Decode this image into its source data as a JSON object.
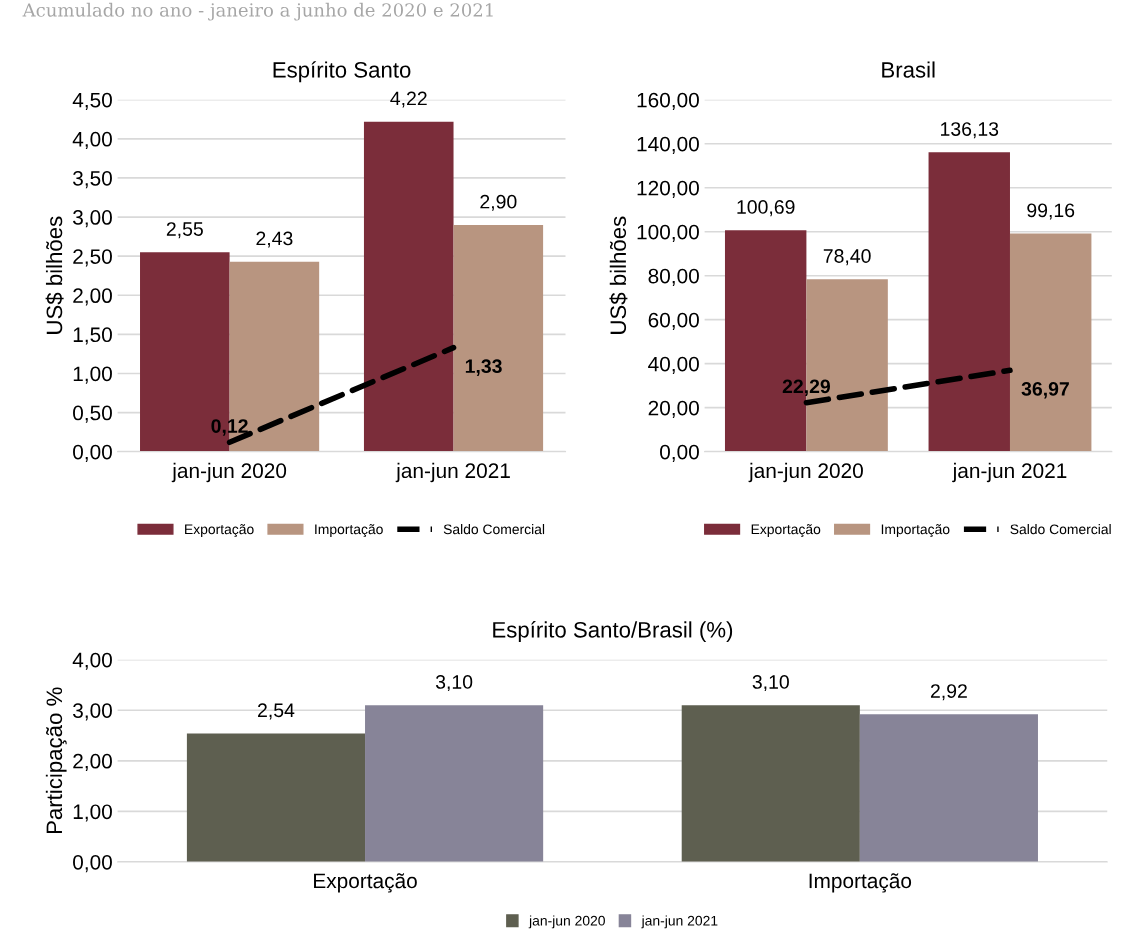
{
  "chart_data": [
    {
      "type": "bar",
      "title": "Espírito Santo",
      "ylabel": "US$ bilhões",
      "annotations": [
        "Acumulado no ano - janeiro a junho de 2020 e 2021"
      ],
      "categories": [
        "jan-jun 2020",
        "jan-jun 2021"
      ],
      "series": [
        {
          "name": "Exportação",
          "color": "#7b2d3a",
          "values": [
            2.55,
            4.22
          ],
          "value_labels": [
            "2,55",
            "4,22"
          ]
        },
        {
          "name": "Importação",
          "color": "#b89580",
          "values": [
            2.43,
            2.9
          ],
          "value_labels": [
            "2,43",
            "2,90"
          ]
        },
        {
          "name": "Saldo Comercial",
          "type": "line",
          "line_style": "dashed",
          "color": "#000000",
          "values": [
            0.12,
            1.33
          ],
          "value_labels": [
            "0,12",
            "1,33"
          ]
        }
      ],
      "ylim": [
        0,
        4.5
      ],
      "yticks": [
        {
          "value": 0,
          "label": "0,00"
        },
        {
          "value": 0.5,
          "label": "0,50"
        },
        {
          "value": 1,
          "label": "1,00"
        },
        {
          "value": 1.5,
          "label": "1,50"
        },
        {
          "value": 2,
          "label": "2,00"
        },
        {
          "value": 2.5,
          "label": "2,50"
        },
        {
          "value": 3,
          "label": "3,00"
        },
        {
          "value": 3.5,
          "label": "3,50"
        },
        {
          "value": 4,
          "label": "4,00"
        },
        {
          "value": 4.5,
          "label": "4,50"
        }
      ],
      "grid": "y",
      "legend": "bottom"
    },
    {
      "type": "bar",
      "title": "Brasil",
      "ylabel": "US$ bilhões",
      "categories": [
        "jan-jun 2020",
        "jan-jun 2021"
      ],
      "series": [
        {
          "name": "Exportação",
          "color": "#7b2d3a",
          "values": [
            100.69,
            136.13
          ],
          "value_labels": [
            "100,69",
            "136,13"
          ]
        },
        {
          "name": "Importação",
          "color": "#b89580",
          "values": [
            78.4,
            99.16
          ],
          "value_labels": [
            "78,40",
            "99,16"
          ]
        },
        {
          "name": "Saldo Comercial",
          "type": "line",
          "line_style": "dashed",
          "color": "#000000",
          "values": [
            22.29,
            36.97
          ],
          "value_labels": [
            "22,29",
            "36,97"
          ]
        }
      ],
      "ylim": [
        0,
        160
      ],
      "yticks": [
        {
          "value": 0,
          "label": "0,00"
        },
        {
          "value": 20,
          "label": "20,00"
        },
        {
          "value": 40,
          "label": "40,00"
        },
        {
          "value": 60,
          "label": "60,00"
        },
        {
          "value": 80,
          "label": "80,00"
        },
        {
          "value": 100,
          "label": "100,00"
        },
        {
          "value": 120,
          "label": "120,00"
        },
        {
          "value": 140,
          "label": "140,00"
        },
        {
          "value": 160,
          "label": "160,00"
        }
      ],
      "grid": "y",
      "legend": "bottom"
    },
    {
      "type": "bar",
      "title": "Espírito Santo/Brasil (%)",
      "ylabel": "Participação %",
      "categories": [
        "Exportação",
        "Importação"
      ],
      "series": [
        {
          "name": "jan-jun 2020",
          "color": "#5e5f50",
          "values": [
            2.54,
            3.1
          ],
          "value_labels": [
            "2,54",
            "3,10"
          ]
        },
        {
          "name": "jan-jun 2021",
          "color": "#878498",
          "values": [
            3.1,
            2.92
          ],
          "value_labels": [
            "3,10",
            "2,92"
          ]
        }
      ],
      "ylim": [
        0,
        4
      ],
      "yticks": [
        {
          "value": 0,
          "label": "0,00"
        },
        {
          "value": 1,
          "label": "1,00"
        },
        {
          "value": 2,
          "label": "2,00"
        },
        {
          "value": 3,
          "label": "3,00"
        },
        {
          "value": 4,
          "label": "4,00"
        }
      ],
      "grid": "y",
      "legend": "bottom"
    }
  ]
}
